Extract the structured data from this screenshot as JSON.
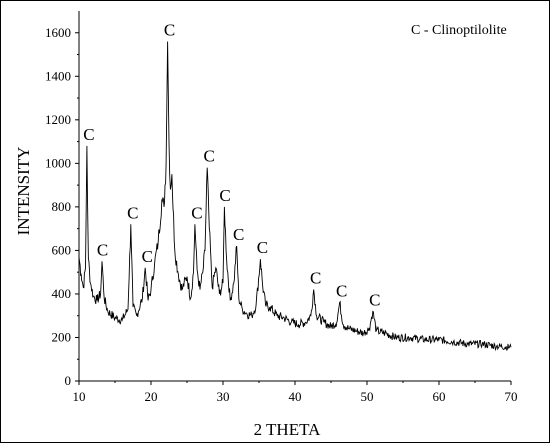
{
  "chart_data": {
    "type": "line",
    "title": "",
    "xlabel": "2 THETA",
    "ylabel": "INTENSITY",
    "xlim": [
      10,
      70
    ],
    "ylim": [
      0,
      1700
    ],
    "x_ticks": [
      10,
      20,
      30,
      40,
      50,
      60,
      70
    ],
    "y_ticks": [
      0,
      200,
      400,
      600,
      800,
      1000,
      1200,
      1400,
      1600
    ],
    "grid": false,
    "legend_text": "C - Clinoptilolite",
    "legend_position": "top-right",
    "line_color": "#000000",
    "series": [
      {
        "x": [
          10,
          10.3,
          10.6,
          10.9,
          11.1,
          11.3,
          11.6,
          12,
          12.5,
          13,
          13.2,
          13.5,
          14,
          15,
          16,
          16.8,
          17.2,
          17.5,
          18,
          18.8,
          19.2,
          19.6,
          20,
          20.5,
          21,
          21.5,
          21.8,
          22.1,
          22.3,
          22.5,
          22.7,
          22.9,
          23.3,
          23.8,
          24.3,
          25,
          25.5,
          25.9,
          26.1,
          26.4,
          26.8,
          27.2,
          27.5,
          27.8,
          28.1,
          28.5,
          29,
          29.5,
          30,
          30.2,
          30.5,
          31,
          31.5,
          31.9,
          32.2,
          32.7,
          33.3,
          34,
          34.6,
          35.2,
          35.5,
          35.9,
          36.5,
          37.5,
          38.5,
          39.5,
          40.5,
          41.5,
          42.2,
          42.6,
          43,
          44,
          45,
          45.8,
          46.2,
          46.7,
          47.5,
          48.5,
          49.5,
          50.3,
          50.8,
          51.3,
          52.5,
          54,
          56,
          58,
          60,
          62,
          64,
          66,
          68,
          70
        ],
        "y": [
          570,
          490,
          430,
          520,
          1080,
          560,
          450,
          390,
          370,
          400,
          550,
          380,
          320,
          290,
          280,
          330,
          720,
          340,
          300,
          380,
          520,
          370,
          420,
          540,
          640,
          830,
          800,
          1000,
          1560,
          1100,
          880,
          950,
          600,
          490,
          420,
          480,
          380,
          500,
          720,
          510,
          420,
          500,
          600,
          980,
          700,
          430,
          520,
          400,
          450,
          800,
          560,
          370,
          450,
          620,
          380,
          330,
          310,
          300,
          350,
          560,
          440,
          350,
          340,
          300,
          290,
          270,
          260,
          270,
          300,
          420,
          300,
          270,
          250,
          270,
          360,
          260,
          240,
          230,
          220,
          240,
          320,
          230,
          220,
          200,
          200,
          190,
          190,
          180,
          170,
          170,
          160,
          155
        ]
      }
    ],
    "peak_labels": [
      {
        "x": 11.1,
        "y": 1080,
        "text": "C"
      },
      {
        "x": 13.0,
        "y": 550,
        "text": "C"
      },
      {
        "x": 17.2,
        "y": 720,
        "text": "C"
      },
      {
        "x": 19.2,
        "y": 520,
        "text": "C"
      },
      {
        "x": 22.3,
        "y": 1560,
        "text": "C"
      },
      {
        "x": 26.1,
        "y": 720,
        "text": "C"
      },
      {
        "x": 27.8,
        "y": 980,
        "text": "C"
      },
      {
        "x": 30.0,
        "y": 800,
        "text": "C"
      },
      {
        "x": 31.9,
        "y": 620,
        "text": "C"
      },
      {
        "x": 35.2,
        "y": 560,
        "text": "C"
      },
      {
        "x": 42.6,
        "y": 420,
        "text": "C"
      },
      {
        "x": 46.2,
        "y": 360,
        "text": "C"
      },
      {
        "x": 50.8,
        "y": 320,
        "text": "C"
      }
    ]
  }
}
